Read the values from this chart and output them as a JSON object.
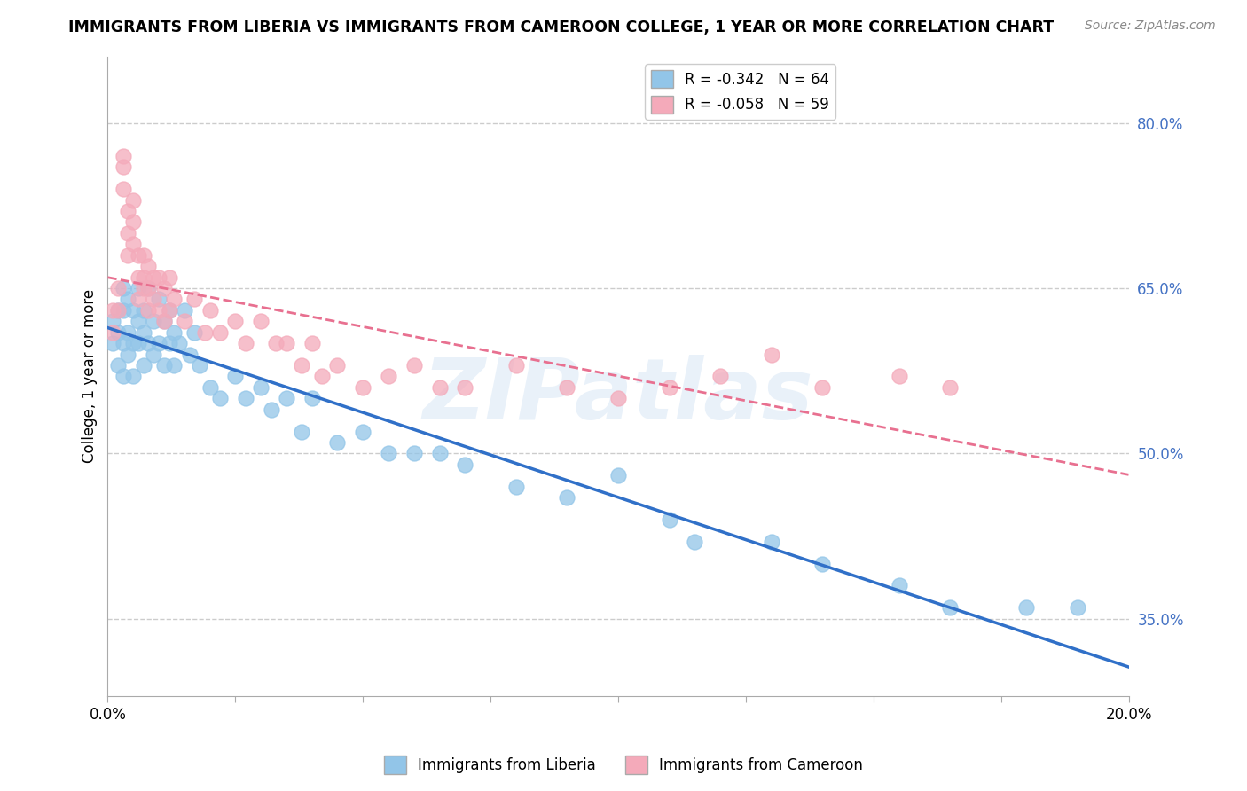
{
  "title": "IMMIGRANTS FROM LIBERIA VS IMMIGRANTS FROM CAMEROON COLLEGE, 1 YEAR OR MORE CORRELATION CHART",
  "source": "Source: ZipAtlas.com",
  "ylabel": "College, 1 year or more",
  "xlim": [
    0.0,
    0.2
  ],
  "ylim": [
    0.28,
    0.86
  ],
  "right_yticks": [
    0.35,
    0.5,
    0.65,
    0.8
  ],
  "right_yticklabels": [
    "35.0%",
    "50.0%",
    "65.0%",
    "80.0%"
  ],
  "color_liberia": "#92C5E8",
  "color_cameroon": "#F4AABA",
  "line_liberia": "#3070C8",
  "line_cameroon": "#E87090",
  "R_liberia": -0.342,
  "N_liberia": 64,
  "R_cameroon": -0.058,
  "N_cameroon": 59,
  "liberia_x": [
    0.001,
    0.001,
    0.002,
    0.002,
    0.002,
    0.003,
    0.003,
    0.003,
    0.003,
    0.004,
    0.004,
    0.004,
    0.005,
    0.005,
    0.005,
    0.006,
    0.006,
    0.006,
    0.007,
    0.007,
    0.007,
    0.008,
    0.008,
    0.009,
    0.009,
    0.01,
    0.01,
    0.011,
    0.011,
    0.012,
    0.012,
    0.013,
    0.013,
    0.014,
    0.015,
    0.016,
    0.017,
    0.018,
    0.02,
    0.022,
    0.025,
    0.027,
    0.03,
    0.032,
    0.035,
    0.038,
    0.04,
    0.045,
    0.05,
    0.055,
    0.06,
    0.065,
    0.07,
    0.08,
    0.09,
    0.1,
    0.11,
    0.115,
    0.13,
    0.14,
    0.155,
    0.165,
    0.18,
    0.19
  ],
  "liberia_y": [
    0.62,
    0.6,
    0.63,
    0.61,
    0.58,
    0.65,
    0.63,
    0.6,
    0.57,
    0.64,
    0.61,
    0.59,
    0.63,
    0.6,
    0.57,
    0.65,
    0.62,
    0.6,
    0.63,
    0.61,
    0.58,
    0.65,
    0.6,
    0.62,
    0.59,
    0.64,
    0.6,
    0.62,
    0.58,
    0.63,
    0.6,
    0.61,
    0.58,
    0.6,
    0.63,
    0.59,
    0.61,
    0.58,
    0.56,
    0.55,
    0.57,
    0.55,
    0.56,
    0.54,
    0.55,
    0.52,
    0.55,
    0.51,
    0.52,
    0.5,
    0.5,
    0.5,
    0.49,
    0.47,
    0.46,
    0.48,
    0.44,
    0.42,
    0.42,
    0.4,
    0.38,
    0.36,
    0.36,
    0.36
  ],
  "cameroon_x": [
    0.001,
    0.001,
    0.002,
    0.002,
    0.003,
    0.003,
    0.003,
    0.004,
    0.004,
    0.004,
    0.005,
    0.005,
    0.005,
    0.006,
    0.006,
    0.006,
    0.007,
    0.007,
    0.007,
    0.008,
    0.008,
    0.008,
    0.009,
    0.009,
    0.01,
    0.01,
    0.011,
    0.011,
    0.012,
    0.012,
    0.013,
    0.015,
    0.017,
    0.019,
    0.02,
    0.022,
    0.025,
    0.027,
    0.03,
    0.033,
    0.035,
    0.038,
    0.04,
    0.042,
    0.045,
    0.05,
    0.055,
    0.06,
    0.065,
    0.07,
    0.08,
    0.09,
    0.1,
    0.11,
    0.12,
    0.13,
    0.14,
    0.155,
    0.165
  ],
  "cameroon_y": [
    0.63,
    0.61,
    0.65,
    0.63,
    0.77,
    0.76,
    0.74,
    0.72,
    0.7,
    0.68,
    0.73,
    0.71,
    0.69,
    0.68,
    0.66,
    0.64,
    0.68,
    0.66,
    0.65,
    0.67,
    0.65,
    0.63,
    0.66,
    0.64,
    0.66,
    0.63,
    0.65,
    0.62,
    0.66,
    0.63,
    0.64,
    0.62,
    0.64,
    0.61,
    0.63,
    0.61,
    0.62,
    0.6,
    0.62,
    0.6,
    0.6,
    0.58,
    0.6,
    0.57,
    0.58,
    0.56,
    0.57,
    0.58,
    0.56,
    0.56,
    0.58,
    0.56,
    0.55,
    0.56,
    0.57,
    0.59,
    0.56,
    0.57,
    0.56
  ],
  "background_color": "#FFFFFF",
  "grid_color": "#CCCCCC",
  "watermark": "ZIPatlas",
  "watermark_color": "#C0D8F0",
  "watermark_alpha": 0.35
}
